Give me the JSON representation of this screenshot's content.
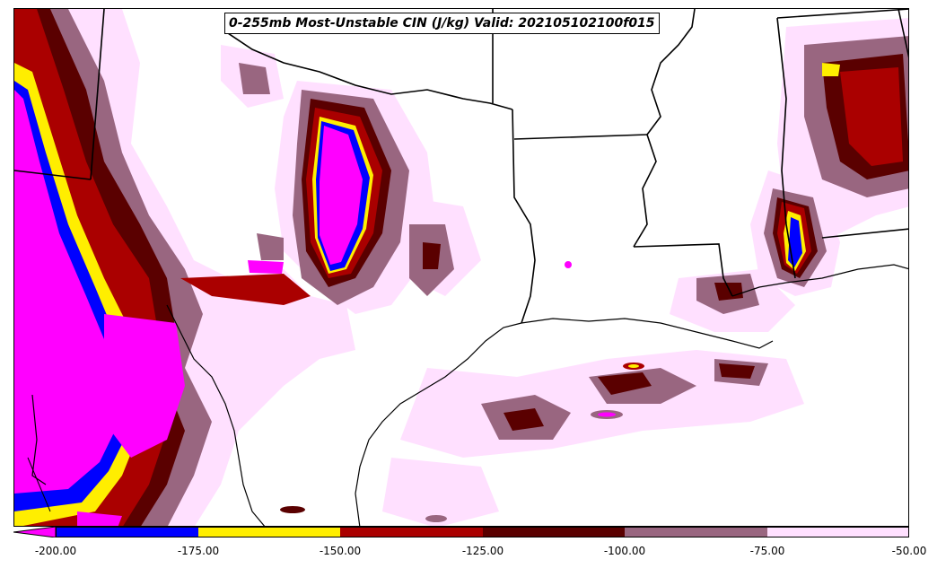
{
  "title": "0-255mb Most-Unstable CIN (J/kg) Valid: 202105102100f015",
  "colorbar": {
    "tick_labels": [
      "-200.00",
      "-175.00",
      "-150.00",
      "-125.00",
      "-100.00",
      "-75.00",
      "-50.00"
    ],
    "colors": [
      "#ff00ff",
      "#0000ff",
      "#ffee00",
      "#aa0000",
      "#5a0000",
      "#996680",
      "#ffe0ff"
    ],
    "extend": "min"
  },
  "legend_colors": {
    "below_-200": "#ff00ff",
    "-200_to_-175": "#0000ff",
    "-175_to_-150": "#ffee00",
    "-150_to_-125": "#aa0000",
    "-125_to_-100": "#5a0000",
    "-100_to_-75": "#996680",
    "-75_to_-50": "#ffe0ff"
  }
}
